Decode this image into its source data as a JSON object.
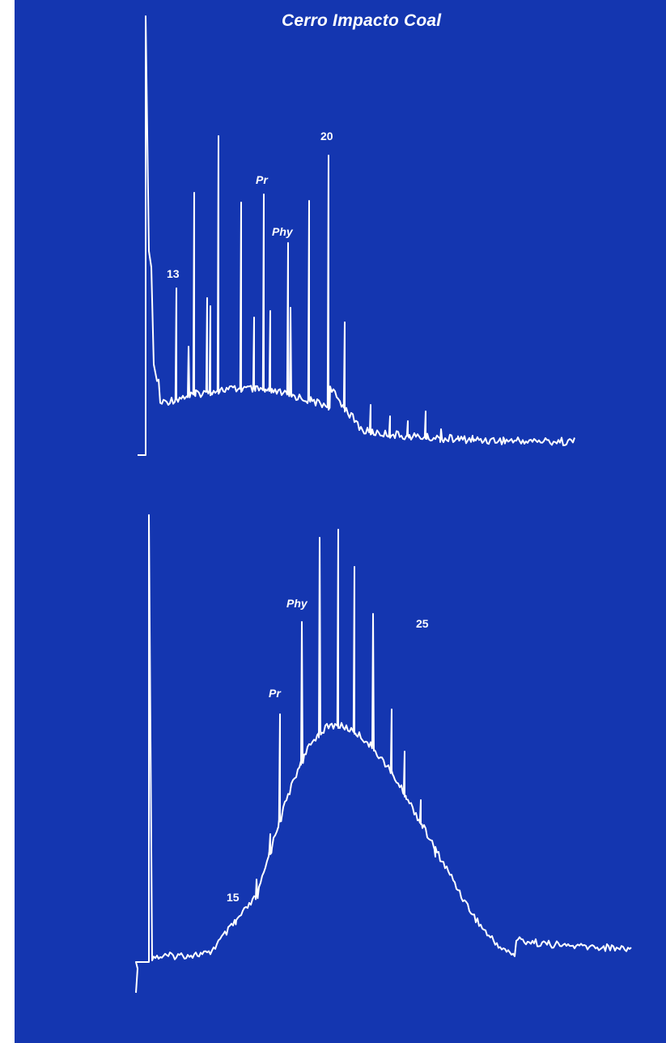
{
  "colors": {
    "background": "#1436b0",
    "trace": "#ffffff",
    "page": "#ffffff"
  },
  "chart_data": [
    {
      "type": "line",
      "title": "Cerro Impacto Coal",
      "grid": false,
      "annotations": [
        {
          "text": "13",
          "peak": 1
        },
        {
          "text": "Pr",
          "peak": 9
        },
        {
          "text": "Phy",
          "peak": 10
        },
        {
          "text": "20",
          "peak": 12
        }
      ]
    },
    {
      "type": "line",
      "title": "",
      "grid": false,
      "annotations": [
        {
          "text": "15",
          "peak": 0
        },
        {
          "text": "Pr",
          "peak": 2
        },
        {
          "text": "Phy",
          "peak": 3
        },
        {
          "text": "25",
          "peak": 10
        }
      ]
    }
  ]
}
